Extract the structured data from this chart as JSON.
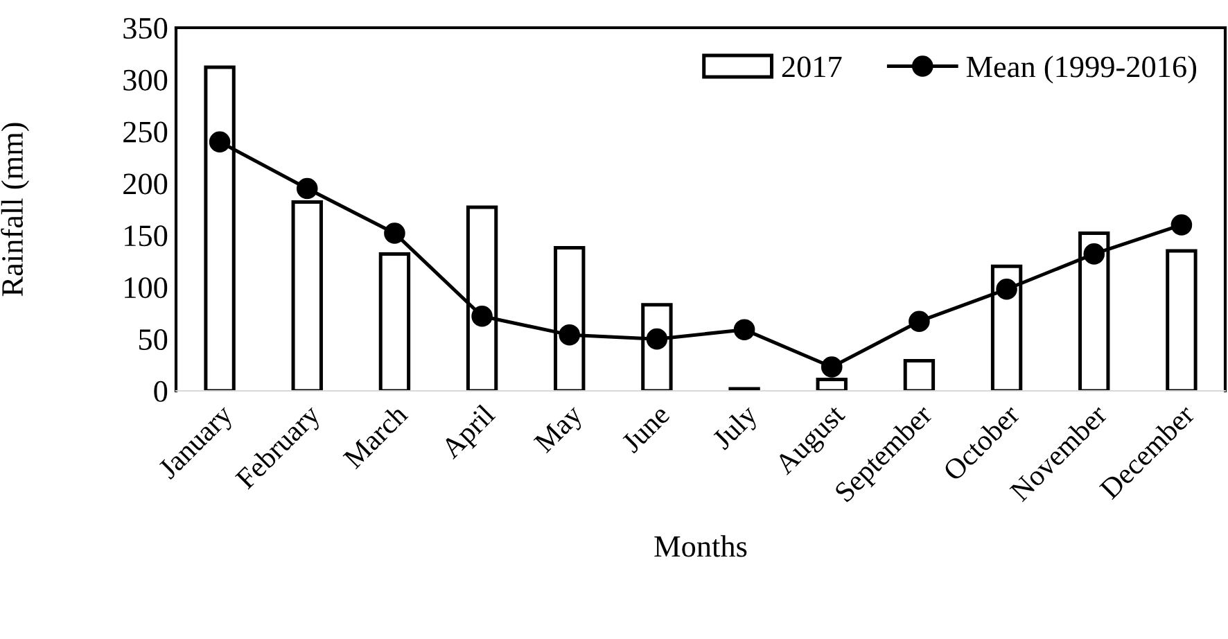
{
  "chart_data": {
    "type": "bar",
    "xlabel": "Months",
    "ylabel": "Rainfall (mm)",
    "categories": [
      "January",
      "February",
      "March",
      "April",
      "May",
      "June",
      "July",
      "August",
      "September",
      "October",
      "November",
      "December"
    ],
    "series": [
      {
        "name": "2017",
        "color": "#ffffff",
        "values": [
          312,
          182,
          132,
          177,
          138,
          83,
          2,
          11,
          29,
          120,
          152,
          135
        ]
      },
      {
        "name": "Mean (1999-2016)",
        "type": "line",
        "color": "#000000",
        "marker": "circle",
        "line_style": "solid",
        "values": [
          240,
          195,
          152,
          72,
          54,
          50,
          59,
          23,
          67,
          98,
          132,
          160
        ]
      }
    ],
    "ylim": [
      0,
      350
    ],
    "yticks": [
      0,
      50,
      100,
      150,
      200,
      250,
      300,
      350
    ],
    "grid": false,
    "legend": "top right"
  }
}
